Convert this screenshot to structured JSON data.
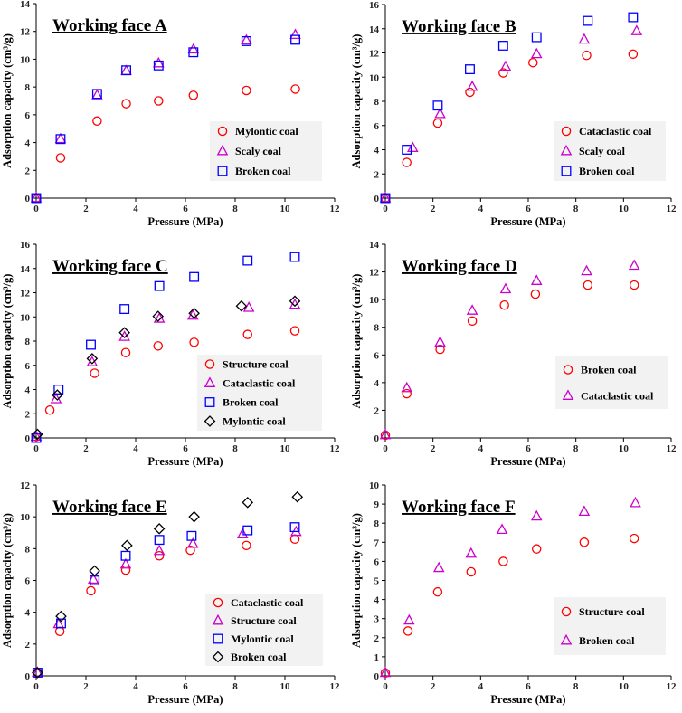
{
  "chart_data": [
    {
      "type": "scatter",
      "title": "Working face A",
      "xlabel": "Pressure (MPa)",
      "ylabel": "Adsorption capacity (cm³/g)",
      "xlim": [
        0,
        12
      ],
      "ylim": [
        0,
        14
      ],
      "xticks": [
        0,
        2,
        4,
        6,
        8,
        10,
        12
      ],
      "yticks": [
        0,
        2,
        4,
        6,
        8,
        10,
        12,
        14
      ],
      "legend_position": "bottom-right",
      "series": [
        {
          "name": "Mylontic coal",
          "marker": "circle",
          "color": "#ff0000",
          "x": [
            0.0,
            0.98,
            2.45,
            3.62,
            4.92,
            6.32,
            8.45,
            10.42
          ],
          "y": [
            0.0,
            2.9,
            5.55,
            6.8,
            7.0,
            7.4,
            7.75,
            7.85
          ]
        },
        {
          "name": "Scaly coal",
          "marker": "triangle",
          "color": "#cc00cc",
          "x": [
            0.0,
            0.98,
            2.45,
            3.62,
            4.92,
            6.32,
            8.45,
            10.42
          ],
          "y": [
            0.0,
            4.25,
            7.4,
            9.15,
            9.7,
            10.7,
            11.35,
            11.75
          ]
        },
        {
          "name": "Broken coal",
          "marker": "square",
          "color": "#0000ff",
          "x": [
            0.0,
            0.98,
            2.45,
            3.62,
            4.92,
            6.32,
            8.45,
            10.42
          ],
          "y": [
            0.0,
            4.25,
            7.5,
            9.2,
            9.55,
            10.5,
            11.3,
            11.4
          ]
        }
      ]
    },
    {
      "type": "scatter",
      "title": "Working face B",
      "xlabel": "Pressure (MPa)",
      "ylabel": "Adsorption capacity (cm³/g)",
      "xlim": [
        0,
        12
      ],
      "ylim": [
        0,
        16
      ],
      "xticks": [
        0,
        2,
        4,
        6,
        8,
        10,
        12
      ],
      "yticks": [
        0,
        2,
        4,
        6,
        8,
        10,
        12,
        14,
        16
      ],
      "legend_position": "bottom-right",
      "series": [
        {
          "name": "Cataclastic coal",
          "marker": "circle",
          "color": "#ff0000",
          "x": [
            0.0,
            0.9,
            2.2,
            3.55,
            4.95,
            6.2,
            8.45,
            10.4
          ],
          "y": [
            0.0,
            2.95,
            6.2,
            8.75,
            10.35,
            11.2,
            11.8,
            11.9
          ]
        },
        {
          "name": "Scaly coal",
          "marker": "triangle",
          "color": "#cc00cc",
          "x": [
            0.0,
            1.15,
            2.3,
            3.65,
            5.05,
            6.35,
            8.35,
            10.55
          ],
          "y": [
            0.0,
            4.15,
            6.95,
            9.2,
            10.85,
            11.9,
            13.1,
            13.8
          ]
        },
        {
          "name": "Broken coal",
          "marker": "square",
          "color": "#0000ff",
          "x": [
            0.0,
            0.9,
            2.2,
            3.55,
            4.95,
            6.35,
            8.5,
            10.4
          ],
          "y": [
            0.0,
            4.0,
            7.65,
            10.65,
            12.6,
            13.3,
            14.65,
            14.95
          ]
        }
      ]
    },
    {
      "type": "scatter",
      "title": "Working face C",
      "xlabel": "Pressure (MPa)",
      "ylabel": "Adsorption capacity (cm³/g)",
      "xlim": [
        0,
        12
      ],
      "ylim": [
        0,
        16
      ],
      "xticks": [
        0,
        2,
        4,
        6,
        8,
        10,
        12
      ],
      "yticks": [
        0,
        2,
        4,
        6,
        8,
        10,
        12,
        14,
        16
      ],
      "legend_position": "bottom-right",
      "series": [
        {
          "name": "Structure coal",
          "marker": "circle",
          "color": "#ff0000",
          "x": [
            0.0,
            0.55,
            2.35,
            3.6,
            4.9,
            6.35,
            8.5,
            10.4
          ],
          "y": [
            0.1,
            2.3,
            5.35,
            7.05,
            7.6,
            7.9,
            8.55,
            8.85
          ]
        },
        {
          "name": "Cataclastic coal",
          "marker": "triangle",
          "color": "#cc00cc",
          "x": [
            0.0,
            0.8,
            2.25,
            3.55,
            4.95,
            6.3,
            8.55,
            10.4
          ],
          "y": [
            0.1,
            3.2,
            6.25,
            8.35,
            9.85,
            10.1,
            10.75,
            11.0
          ]
        },
        {
          "name": "Broken coal",
          "marker": "square",
          "color": "#0000ff",
          "x": [
            0.0,
            0.9,
            2.2,
            3.55,
            4.95,
            6.35,
            8.5,
            10.4
          ],
          "y": [
            0.0,
            4.0,
            7.7,
            10.65,
            12.55,
            13.3,
            14.65,
            14.95
          ]
        },
        {
          "name": "Mylontic coal",
          "marker": "diamond",
          "color": "#000000",
          "x": [
            0.05,
            0.85,
            2.25,
            3.55,
            4.9,
            6.35,
            8.25,
            10.4
          ],
          "y": [
            0.3,
            3.55,
            6.55,
            8.7,
            10.05,
            10.3,
            10.9,
            11.3
          ]
        }
      ]
    },
    {
      "type": "scatter",
      "title": "Working face D",
      "xlabel": "Pressure (MPa)",
      "ylabel": "Adsorption capacity (cm³/g)",
      "xlim": [
        0,
        12
      ],
      "ylim": [
        0,
        14
      ],
      "xticks": [
        0,
        2,
        4,
        6,
        8,
        10,
        12
      ],
      "yticks": [
        0,
        2,
        4,
        6,
        8,
        10,
        12,
        14
      ],
      "legend_position": "middle-right",
      "series": [
        {
          "name": "Broken coal",
          "marker": "circle",
          "color": "#ff0000",
          "x": [
            0.0,
            0.9,
            2.3,
            3.65,
            5.0,
            6.3,
            8.5,
            10.45
          ],
          "y": [
            0.2,
            3.2,
            6.4,
            8.45,
            9.6,
            10.4,
            11.05,
            11.05
          ]
        },
        {
          "name": "Cataclastic coal",
          "marker": "triangle",
          "color": "#cc00cc",
          "x": [
            0.0,
            0.9,
            2.3,
            3.65,
            5.05,
            6.35,
            8.45,
            10.45
          ],
          "y": [
            0.2,
            3.6,
            6.9,
            9.2,
            10.75,
            11.35,
            12.05,
            12.45
          ]
        }
      ]
    },
    {
      "type": "scatter",
      "title": "Working face E",
      "xlabel": "Pressure (MPa)",
      "ylabel": "Adsorption capacity (cm³/g)",
      "xlim": [
        0,
        12
      ],
      "ylim": [
        0,
        12
      ],
      "xticks": [
        0,
        2,
        4,
        6,
        8,
        10,
        12
      ],
      "yticks": [
        0,
        2,
        4,
        6,
        8,
        10,
        12
      ],
      "legend_position": "bottom-right",
      "series": [
        {
          "name": "Cataclastic coal",
          "marker": "circle",
          "color": "#ff0000",
          "x": [
            0.05,
            0.95,
            2.2,
            3.6,
            4.95,
            6.2,
            8.45,
            10.4
          ],
          "y": [
            0.2,
            2.8,
            5.35,
            6.65,
            7.55,
            7.9,
            8.2,
            8.6
          ]
        },
        {
          "name": "Structure coal",
          "marker": "triangle",
          "color": "#cc00cc",
          "x": [
            0.05,
            0.9,
            2.3,
            3.6,
            4.95,
            6.3,
            8.3,
            10.45
          ],
          "y": [
            0.2,
            3.25,
            6.05,
            7.0,
            7.85,
            8.3,
            8.9,
            9.05
          ]
        },
        {
          "name": "Mylontic coal",
          "marker": "square",
          "color": "#0000ff",
          "x": [
            0.05,
            1.0,
            2.35,
            3.6,
            4.95,
            6.25,
            8.5,
            10.4
          ],
          "y": [
            0.2,
            3.3,
            6.0,
            7.55,
            8.55,
            8.8,
            9.15,
            9.35
          ]
        },
        {
          "name": "Broken coal",
          "marker": "diamond",
          "color": "#000000",
          "x": [
            0.05,
            1.0,
            2.35,
            3.65,
            4.95,
            6.35,
            8.5,
            10.5
          ],
          "y": [
            0.2,
            3.75,
            6.6,
            8.2,
            9.25,
            10.0,
            10.9,
            11.25
          ]
        }
      ]
    },
    {
      "type": "scatter",
      "title": "Working face F",
      "xlabel": "Pressure (MPa)",
      "ylabel": "Adsorption capacity (cm³/g)",
      "xlim": [
        0,
        12
      ],
      "ylim": [
        0,
        10
      ],
      "xticks": [
        0,
        2,
        4,
        6,
        8,
        10,
        12
      ],
      "yticks": [
        0,
        1,
        2,
        3,
        4,
        5,
        6,
        7,
        8,
        9,
        10
      ],
      "legend_position": "bottom-right",
      "series": [
        {
          "name": "Structure coal",
          "marker": "circle",
          "color": "#ff0000",
          "x": [
            0.0,
            0.95,
            2.2,
            3.6,
            4.95,
            6.35,
            8.35,
            10.45
          ],
          "y": [
            0.15,
            2.35,
            4.4,
            5.45,
            6.0,
            6.65,
            7.0,
            7.2
          ]
        },
        {
          "name": "Broken coal",
          "marker": "triangle",
          "color": "#cc00cc",
          "x": [
            0.0,
            1.0,
            2.25,
            3.6,
            4.9,
            6.35,
            8.35,
            10.5
          ],
          "y": [
            0.15,
            2.9,
            5.65,
            6.4,
            7.65,
            8.35,
            8.6,
            9.05
          ]
        }
      ]
    }
  ]
}
